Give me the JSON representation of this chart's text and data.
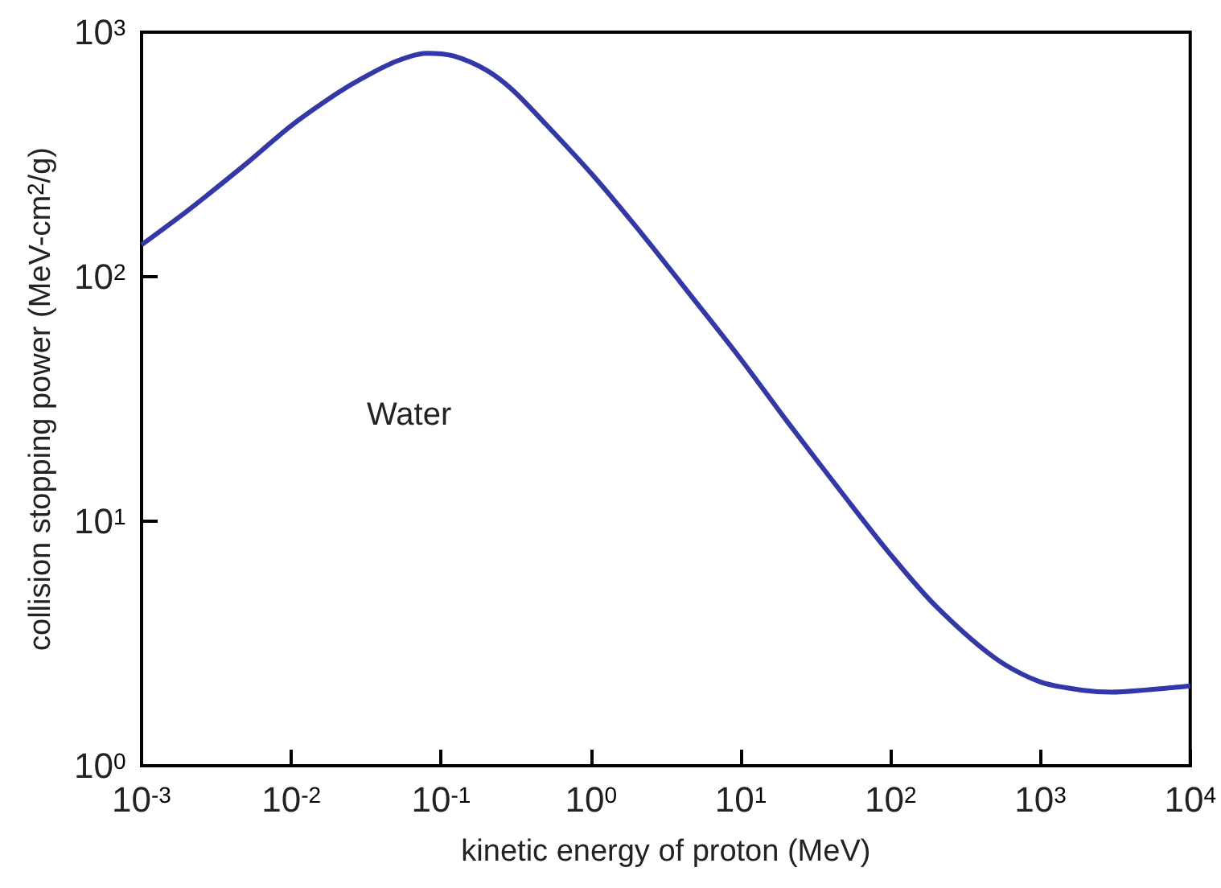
{
  "chart_data": {
    "type": "line",
    "xlabel": "kinetic energy of proton (MeV)",
    "ylabel": "collision stopping power (MeV-cm$^{2}$/g)",
    "log": "xy",
    "grid": false,
    "marker": "none",
    "line_style": "solid",
    "annotations": [
      "Water"
    ],
    "xlim": [
      0.001,
      10000
    ],
    "ylim": [
      1,
      1000
    ],
    "xticks": [
      {
        "value": 0.001,
        "label": "10$^{-3}$"
      },
      {
        "value": 0.01,
        "label": "10$^{-2}$"
      },
      {
        "value": 0.1,
        "label": "10$^{-1}$"
      },
      {
        "value": 1,
        "label": "10$^{0}$"
      },
      {
        "value": 10,
        "label": "10$^{1}$"
      },
      {
        "value": 100,
        "label": "10$^{2}$"
      },
      {
        "value": 1000,
        "label": "10$^{3}$"
      },
      {
        "value": 10000,
        "label": "10$^{4}$"
      }
    ],
    "yticks": [
      {
        "value": 1,
        "label": "10$^{0}$"
      },
      {
        "value": 10,
        "label": "10$^{1}$"
      },
      {
        "value": 100,
        "label": "10$^{2}$"
      },
      {
        "value": 1000,
        "label": "10$^{3}$"
      }
    ],
    "x": [
      0.001,
      0.002,
      0.003,
      0.005,
      0.01,
      0.02,
      0.03,
      0.05,
      0.08,
      0.12,
      0.2,
      0.3,
      0.5,
      1,
      2,
      5,
      10,
      20,
      50,
      100,
      200,
      500,
      1000,
      2000,
      3000,
      5000,
      10000
    ],
    "series": [
      {
        "color": "#3338a8",
        "values": [
          135,
          185,
          225,
          290,
          415,
          560,
          650,
          760,
          820,
          800,
          700,
          580,
          420,
          265,
          160,
          79,
          46,
          26,
          12.5,
          7.3,
          4.5,
          2.75,
          2.2,
          2.03,
          2.0,
          2.04,
          2.12
        ]
      }
    ]
  }
}
